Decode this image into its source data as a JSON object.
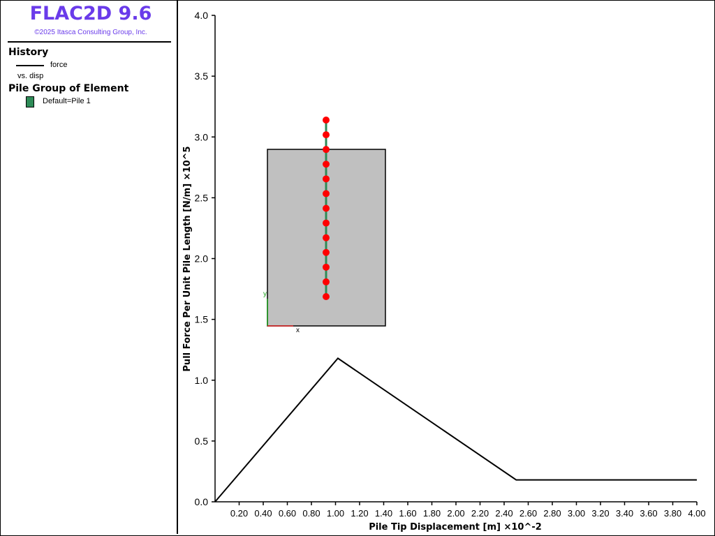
{
  "app": {
    "title": "FLAC2D 9.6",
    "copyright": "©2025 Itasca Consulting Group, Inc."
  },
  "legend": {
    "history_heading": "History",
    "history_series": "force",
    "history_vs": "vs. disp",
    "group_heading": "Pile Group of Element",
    "group_item": "Default=Pile 1",
    "group_color": "#2e8b57"
  },
  "inset": {
    "axis_x_label": "x",
    "axis_y_label": "y",
    "pile_color": "#2e8b57",
    "node_color": "#ff0000",
    "node_count": 13,
    "box_fill": "#c0c0c0"
  },
  "chart_data": {
    "type": "line",
    "xlabel": "Pile Tip Displacement [m]  ×10^-2",
    "ylabel": "Pull Force Per Unit Pile Length [N/m]  ×10^5",
    "xlim": [
      0,
      4.0
    ],
    "ylim": [
      0,
      4.0
    ],
    "x_ticks": [
      "0.20",
      "0.40",
      "0.60",
      "0.80",
      "1.00",
      "1.20",
      "1.40",
      "1.60",
      "1.80",
      "2.00",
      "2.20",
      "2.40",
      "2.60",
      "2.80",
      "3.00",
      "3.20",
      "3.40",
      "3.60",
      "3.80",
      "4.00"
    ],
    "y_ticks": [
      "0.0",
      "0.5",
      "1.0",
      "1.5",
      "2.0",
      "2.5",
      "3.0",
      "3.5",
      "4.0"
    ],
    "series": [
      {
        "name": "force",
        "color": "#000000",
        "x": [
          0.0,
          1.02,
          2.5,
          4.0
        ],
        "y": [
          0.0,
          1.18,
          0.18,
          0.18
        ]
      }
    ]
  }
}
